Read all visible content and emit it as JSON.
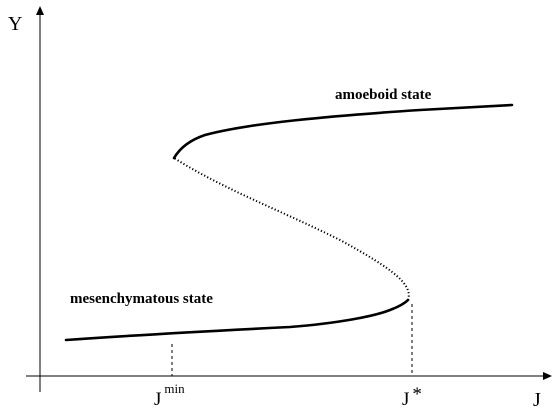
{
  "axes": {
    "y_label": "Y",
    "x_label": "J"
  },
  "curve": {
    "upper_branch_label": "amoeboid state",
    "lower_branch_label": "mesenchymatous state"
  },
  "ticks": {
    "j_min": {
      "base": "J",
      "sup": "min"
    },
    "j_star": {
      "base": "J",
      "sup": "*"
    }
  }
}
